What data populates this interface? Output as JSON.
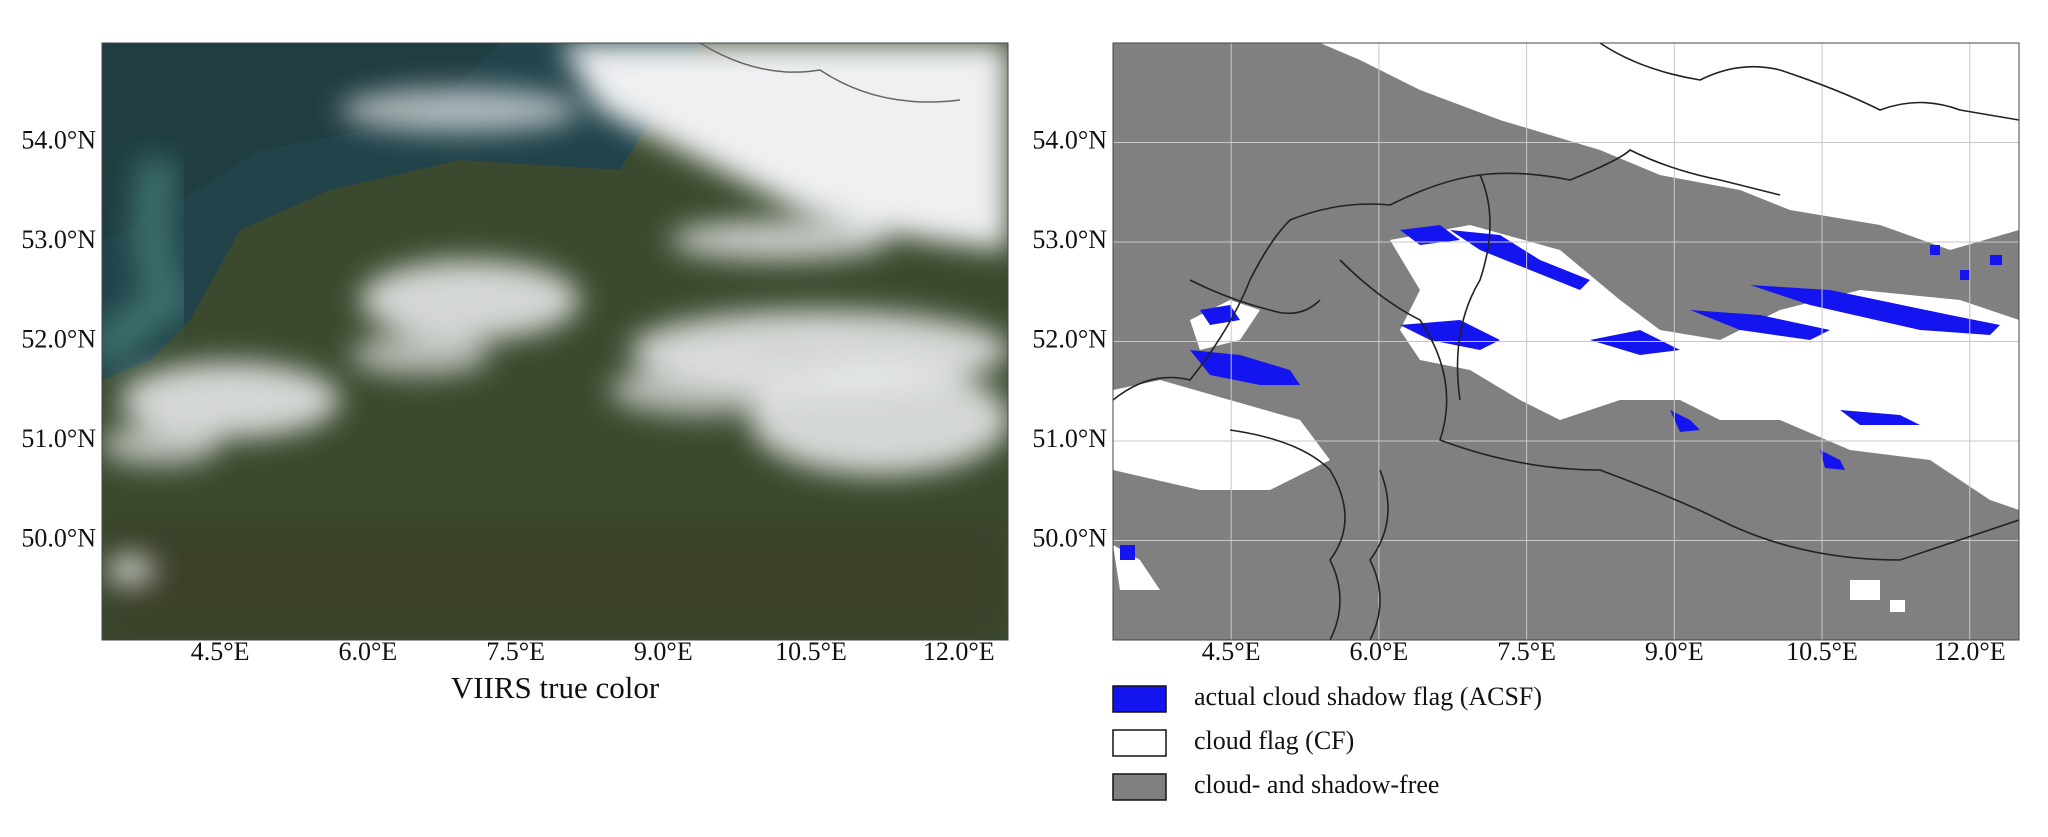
{
  "map": {
    "xlim": [
      3.3,
      12.5
    ],
    "ylim": [
      49,
      55
    ],
    "xticks": [
      {
        "value": 4.5,
        "label": "4.5°E"
      },
      {
        "value": 6,
        "label": "6.0°E"
      },
      {
        "value": 7.5,
        "label": "7.5°E"
      },
      {
        "value": 9,
        "label": "9.0°E"
      },
      {
        "value": 10.5,
        "label": "10.5°E"
      },
      {
        "value": 12,
        "label": "12.0°E"
      }
    ],
    "yticks": [
      {
        "value": 54,
        "label": "54.0°N"
      },
      {
        "value": 53,
        "label": "53.0°N"
      },
      {
        "value": 52,
        "label": "52.0°N"
      },
      {
        "value": 51,
        "label": "51.0°N"
      },
      {
        "value": 50,
        "label": "50.0°N"
      }
    ],
    "panels": [
      {
        "caption": "VIIRS true color",
        "grid": false
      },
      {
        "grid": true,
        "legend": [
          {
            "name": "actual cloud shadow flag (ACSF)",
            "color": "#1414f0"
          },
          {
            "name": "cloud flag (CF)",
            "color": "#ffffff"
          },
          {
            "name": "cloud- and shadow-free",
            "color": "#808080"
          }
        ]
      }
    ]
  }
}
